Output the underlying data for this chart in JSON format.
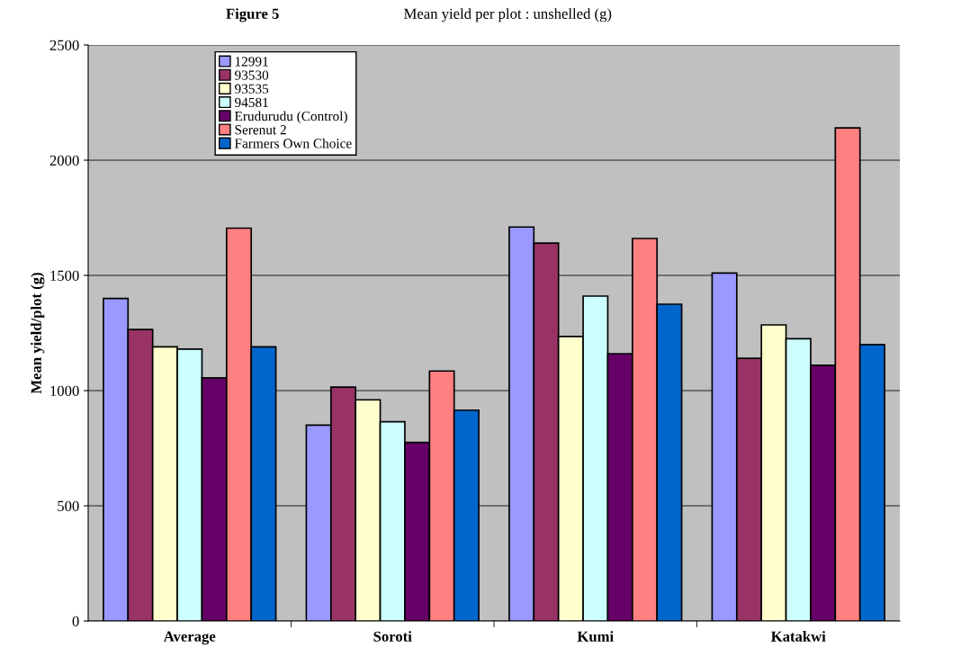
{
  "chart_data": {
    "type": "bar",
    "title": "Figure 5",
    "subtitle": "Mean yield per plot : unshelled (g)",
    "ylabel": "Mean yield/plot (g)",
    "categories": [
      "Average",
      "Soroti",
      "Kumi",
      "Katakwi"
    ],
    "series": [
      {
        "name": "12991",
        "color": "#9999ff",
        "values": [
          1400,
          850,
          1710,
          1510
        ]
      },
      {
        "name": "93530",
        "color": "#993366",
        "values": [
          1265,
          1015,
          1640,
          1140
        ]
      },
      {
        "name": "93535",
        "color": "#ffffcc",
        "values": [
          1190,
          960,
          1235,
          1285
        ]
      },
      {
        "name": "94581",
        "color": "#ccffff",
        "values": [
          1180,
          865,
          1410,
          1225
        ]
      },
      {
        "name": "Erudurudu (Control)",
        "color": "#660066",
        "values": [
          1055,
          775,
          1160,
          1110
        ]
      },
      {
        "name": "Serenut 2",
        "color": "#ff8080",
        "values": [
          1705,
          1085,
          1660,
          2140
        ]
      },
      {
        "name": "Farmers Own Choice",
        "color": "#0066cc",
        "values": [
          1190,
          915,
          1375,
          1200
        ]
      }
    ],
    "ylim": [
      0,
      2500
    ],
    "yticks": [
      0,
      500,
      1000,
      1500,
      2000,
      2500
    ],
    "grid": "y",
    "legend": "top left"
  }
}
